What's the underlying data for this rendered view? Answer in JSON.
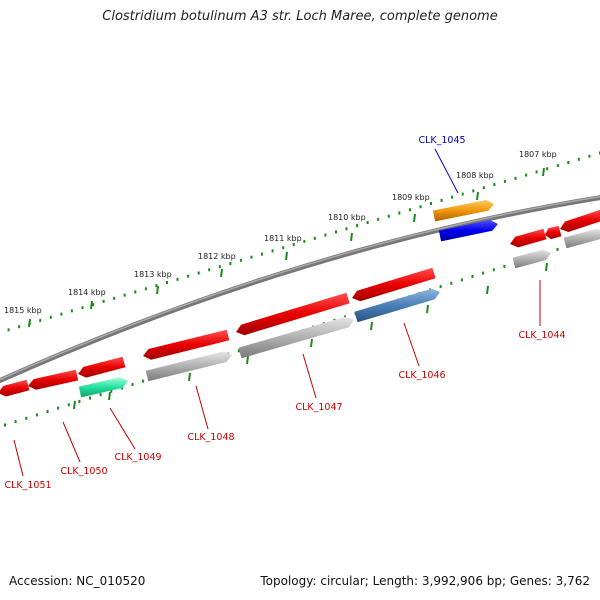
{
  "title": "Clostridium botulinum A3 str. Loch Maree, complete genome",
  "footer": {
    "accession": "Accession: NC_010520",
    "summary": "Topology: circular; Length: 3,992,906 bp; Genes: 3,762"
  },
  "colors": {
    "backbone": "#777777",
    "tick": "#1a8a1a",
    "cds_red": "#e00000",
    "cds_gray": "#a8a8a8",
    "cds_green": "#22e0a0",
    "cds_steelblue": "#4a7fb8",
    "cds_orange": "#f0960a",
    "cds_blue": "#0000ee",
    "label_red": "#cc0000",
    "label_blue": "#0000cc"
  },
  "kbp_ticks": [
    "1815 kbp",
    "1814 kbp",
    "1813 kbp",
    "1812 kbp",
    "1811 kbp",
    "1810 kbp",
    "1809 kbp",
    "1808 kbp",
    "1807 kbp"
  ],
  "gene_labels": [
    {
      "id": "g1051",
      "text": "CLK_1051",
      "color": "red"
    },
    {
      "id": "g1050",
      "text": "CLK_1050",
      "color": "red"
    },
    {
      "id": "g1049",
      "text": "CLK_1049",
      "color": "red"
    },
    {
      "id": "g1048",
      "text": "CLK_1048",
      "color": "red"
    },
    {
      "id": "g1047",
      "text": "CLK_1047",
      "color": "red"
    },
    {
      "id": "g1046",
      "text": "CLK_1046",
      "color": "red"
    },
    {
      "id": "g1045",
      "text": "CLK_1045",
      "color": "blue"
    },
    {
      "id": "g1044",
      "text": "CLK_1044",
      "color": "red"
    }
  ]
}
